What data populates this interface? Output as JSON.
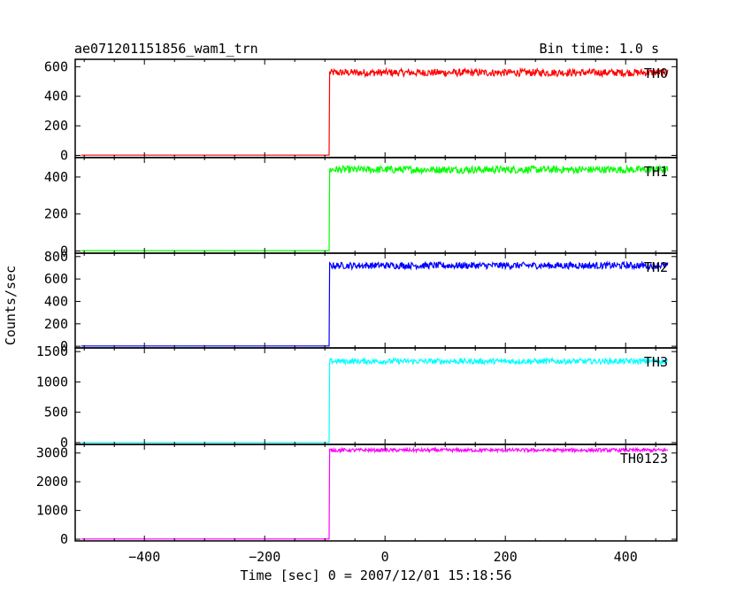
{
  "chart_data": {
    "type": "line",
    "title": "ae071201151856_wam1_trn",
    "subtitle": "Bin time: 1.0 s",
    "xlabel": "Time [sec] 0 = 2007/12/01 15:18:56",
    "ylabel": "Counts/sec",
    "xlim": [
      -515,
      485
    ],
    "x_ticks": [
      -400,
      -200,
      0,
      200,
      400
    ],
    "grid": false,
    "panels": [
      {
        "name": "TH0",
        "color": "#ff0000",
        "ylim": [
          -15,
          650
        ],
        "y_ticks": [
          0,
          200,
          400,
          600
        ],
        "t_step": -92,
        "before": 2,
        "after": 560,
        "noise": 25
      },
      {
        "name": "TH1",
        "color": "#00ff00",
        "ylim": [
          -12,
          505
        ],
        "y_ticks": [
          0,
          200,
          400
        ],
        "t_step": -92,
        "before": 2,
        "after": 440,
        "noise": 20
      },
      {
        "name": "TH2",
        "color": "#0000ff",
        "ylim": [
          -15,
          830
        ],
        "y_ticks": [
          0,
          200,
          400,
          600,
          800
        ],
        "t_step": -92,
        "before": 2,
        "after": 720,
        "noise": 30
      },
      {
        "name": "TH3",
        "color": "#00ffff",
        "ylim": [
          -30,
          1560
        ],
        "y_ticks": [
          0,
          500,
          1000,
          1500
        ],
        "t_step": -92,
        "before": 2,
        "after": 1340,
        "noise": 45
      },
      {
        "name": "TH0123",
        "color": "#ff00ff",
        "ylim": [
          -60,
          3300
        ],
        "y_ticks": [
          0,
          1000,
          2000,
          3000
        ],
        "t_step": -92,
        "before": 8,
        "after": 3100,
        "noise": 60
      }
    ]
  }
}
